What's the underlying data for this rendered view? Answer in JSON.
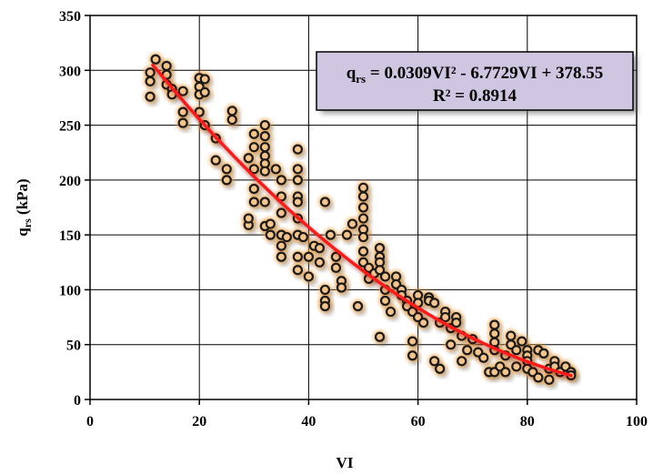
{
  "chart_data": {
    "type": "scatter",
    "xlabel": "VI",
    "ylabel": {
      "base": "q",
      "sub": "rs",
      "rest": " (kPa)"
    },
    "xlim": [
      0,
      100
    ],
    "ylim": [
      0,
      350
    ],
    "xticks": [
      0,
      20,
      40,
      60,
      80,
      100
    ],
    "yticks": [
      0,
      50,
      100,
      150,
      200,
      250,
      300,
      350
    ],
    "grid": true,
    "colors": {
      "marker_edge": "#1a1a1a",
      "marker_glow": "#f0a040",
      "trend": "#ff1a1a",
      "box_fill": "#cfc6e2",
      "box_edge": "#000000"
    },
    "equation": {
      "base": "q",
      "sub": "rs",
      "rhs": " = 0.0309VI² - 6.7729VI + 378.55",
      "r2": "R² = 0.8914"
    },
    "trendline": {
      "type": "polynomial",
      "coefficients": [
        0.0309,
        -6.7729,
        378.55
      ],
      "x_range": [
        11.5,
        88
      ]
    },
    "points": [
      [
        11,
        298
      ],
      [
        11,
        290
      ],
      [
        11,
        276
      ],
      [
        12,
        310
      ],
      [
        14,
        304
      ],
      [
        14,
        296
      ],
      [
        14,
        287
      ],
      [
        15,
        283
      ],
      [
        15,
        278
      ],
      [
        17,
        281
      ],
      [
        17,
        262
      ],
      [
        17,
        252
      ],
      [
        20,
        293
      ],
      [
        20,
        285
      ],
      [
        20,
        278
      ],
      [
        20,
        262
      ],
      [
        21,
        292
      ],
      [
        21,
        280
      ],
      [
        21,
        250
      ],
      [
        23,
        238
      ],
      [
        23,
        218
      ],
      [
        25,
        210
      ],
      [
        25,
        200
      ],
      [
        26,
        263
      ],
      [
        26,
        255
      ],
      [
        29,
        159
      ],
      [
        29,
        165
      ],
      [
        29,
        220
      ],
      [
        30,
        242
      ],
      [
        30,
        230
      ],
      [
        30,
        210
      ],
      [
        30,
        192
      ],
      [
        30,
        180
      ],
      [
        32,
        250
      ],
      [
        32,
        240
      ],
      [
        32,
        230
      ],
      [
        32,
        222
      ],
      [
        32,
        215
      ],
      [
        32,
        208
      ],
      [
        32,
        180
      ],
      [
        32,
        158
      ],
      [
        33,
        160
      ],
      [
        33,
        150
      ],
      [
        34,
        210
      ],
      [
        35,
        200
      ],
      [
        35,
        185
      ],
      [
        35,
        170
      ],
      [
        35,
        150
      ],
      [
        35,
        140
      ],
      [
        35,
        130
      ],
      [
        36,
        148
      ],
      [
        38,
        228
      ],
      [
        38,
        210
      ],
      [
        38,
        200
      ],
      [
        38,
        185
      ],
      [
        38,
        180
      ],
      [
        38,
        165
      ],
      [
        38,
        150
      ],
      [
        38,
        130
      ],
      [
        38,
        118
      ],
      [
        39,
        148
      ],
      [
        40,
        130
      ],
      [
        40,
        112
      ],
      [
        41,
        140
      ],
      [
        42,
        138
      ],
      [
        42,
        125
      ],
      [
        43,
        180
      ],
      [
        43,
        100
      ],
      [
        43,
        90
      ],
      [
        43,
        85
      ],
      [
        44,
        150
      ],
      [
        45,
        130
      ],
      [
        45,
        120
      ],
      [
        46,
        108
      ],
      [
        46,
        102
      ],
      [
        47,
        150
      ],
      [
        48,
        160
      ],
      [
        49,
        85
      ],
      [
        50,
        193
      ],
      [
        50,
        185
      ],
      [
        50,
        175
      ],
      [
        50,
        165
      ],
      [
        50,
        155
      ],
      [
        50,
        148
      ],
      [
        50,
        135
      ],
      [
        50,
        125
      ],
      [
        51,
        120
      ],
      [
        51,
        110
      ],
      [
        52,
        115
      ],
      [
        53,
        57
      ],
      [
        53,
        138
      ],
      [
        53,
        130
      ],
      [
        53,
        125
      ],
      [
        53,
        118
      ],
      [
        54,
        112
      ],
      [
        54,
        100
      ],
      [
        54,
        90
      ],
      [
        55,
        80
      ],
      [
        56,
        112
      ],
      [
        56,
        105
      ],
      [
        57,
        100
      ],
      [
        57,
        95
      ],
      [
        58,
        90
      ],
      [
        58,
        85
      ],
      [
        59,
        53
      ],
      [
        59,
        40
      ],
      [
        59,
        80
      ],
      [
        60,
        95
      ],
      [
        60,
        88
      ],
      [
        60,
        75
      ],
      [
        61,
        70
      ],
      [
        62,
        93
      ],
      [
        62,
        90
      ],
      [
        63,
        88
      ],
      [
        63,
        35
      ],
      [
        64,
        70
      ],
      [
        64,
        28
      ],
      [
        65,
        80
      ],
      [
        65,
        75
      ],
      [
        66,
        65
      ],
      [
        66,
        50
      ],
      [
        67,
        75
      ],
      [
        67,
        70
      ],
      [
        68,
        58
      ],
      [
        68,
        35
      ],
      [
        69,
        45
      ],
      [
        70,
        55
      ],
      [
        71,
        43
      ],
      [
        72,
        38
      ],
      [
        73,
        25
      ],
      [
        74,
        68
      ],
      [
        74,
        60
      ],
      [
        74,
        52
      ],
      [
        74,
        45
      ],
      [
        74,
        25
      ],
      [
        75,
        30
      ],
      [
        76,
        40
      ],
      [
        76,
        25
      ],
      [
        77,
        58
      ],
      [
        77,
        50
      ],
      [
        78,
        45
      ],
      [
        78,
        30
      ],
      [
        79,
        53
      ],
      [
        80,
        45
      ],
      [
        80,
        40
      ],
      [
        80,
        35
      ],
      [
        80,
        28
      ],
      [
        81,
        25
      ],
      [
        82,
        20
      ],
      [
        82,
        45
      ],
      [
        83,
        42
      ],
      [
        84,
        28
      ],
      [
        84,
        18
      ],
      [
        85,
        35
      ],
      [
        85,
        30
      ],
      [
        86,
        25
      ],
      [
        87,
        30
      ],
      [
        88,
        25
      ],
      [
        88,
        22
      ]
    ]
  }
}
